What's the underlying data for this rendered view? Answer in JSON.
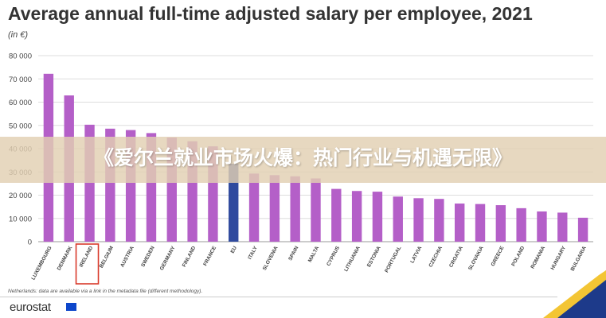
{
  "header": {
    "title": "Average annual full-time adjusted salary per employee, 2021",
    "unit": "(in €)"
  },
  "banner": {
    "text": "《爱尔兰就业市场火爆：热门行业与机遇无限》"
  },
  "footer": {
    "note": "Netherlands: data are available via a link in the metadata file (different methodology).",
    "logo": "eurostat"
  },
  "colors": {
    "bar": "#b45fc8",
    "highlight": "#2f4a9e",
    "grid": "#dddddd",
    "annotation_box": "#d93a2b",
    "brand_navy": "#1d3a8a",
    "brand_yellow": "#f3c534"
  },
  "chart_data": {
    "type": "bar",
    "title": "Average annual full-time adjusted salary per employee, 2021",
    "unit": "(in €)",
    "categories": [
      "LUXEMBOURG",
      "DENMARK",
      "IRELAND",
      "BELGIUM",
      "AUSTRIA",
      "SWEDEN",
      "GERMANY",
      "FINLAND",
      "FRANCE",
      "EU",
      "ITALY",
      "SLOVENIA",
      "SPAIN",
      "MALTA",
      "CYPRUS",
      "LITHUANIA",
      "ESTONIA",
      "PORTUGAL",
      "LATVIA",
      "CZECHIA",
      "CROATIA",
      "SLOVAKIA",
      "GREECE",
      "POLAND",
      "ROMANIA",
      "HUNGARY",
      "BULGARIA"
    ],
    "values": [
      72200,
      62900,
      50300,
      48600,
      48000,
      46700,
      44800,
      43200,
      41000,
      33500,
      29300,
      28600,
      28100,
      27200,
      22700,
      21800,
      21500,
      19400,
      18700,
      18400,
      16400,
      16200,
      15700,
      14400,
      13000,
      12500,
      10300
    ],
    "highlight": "EU",
    "boxed": "IRELAND",
    "yticks": [
      "0",
      "10 000",
      "20 000",
      "30 000",
      "40 000",
      "50 000",
      "60 000",
      "70 000",
      "80 000"
    ],
    "ylim": [
      0,
      80000
    ],
    "grid": true
  }
}
